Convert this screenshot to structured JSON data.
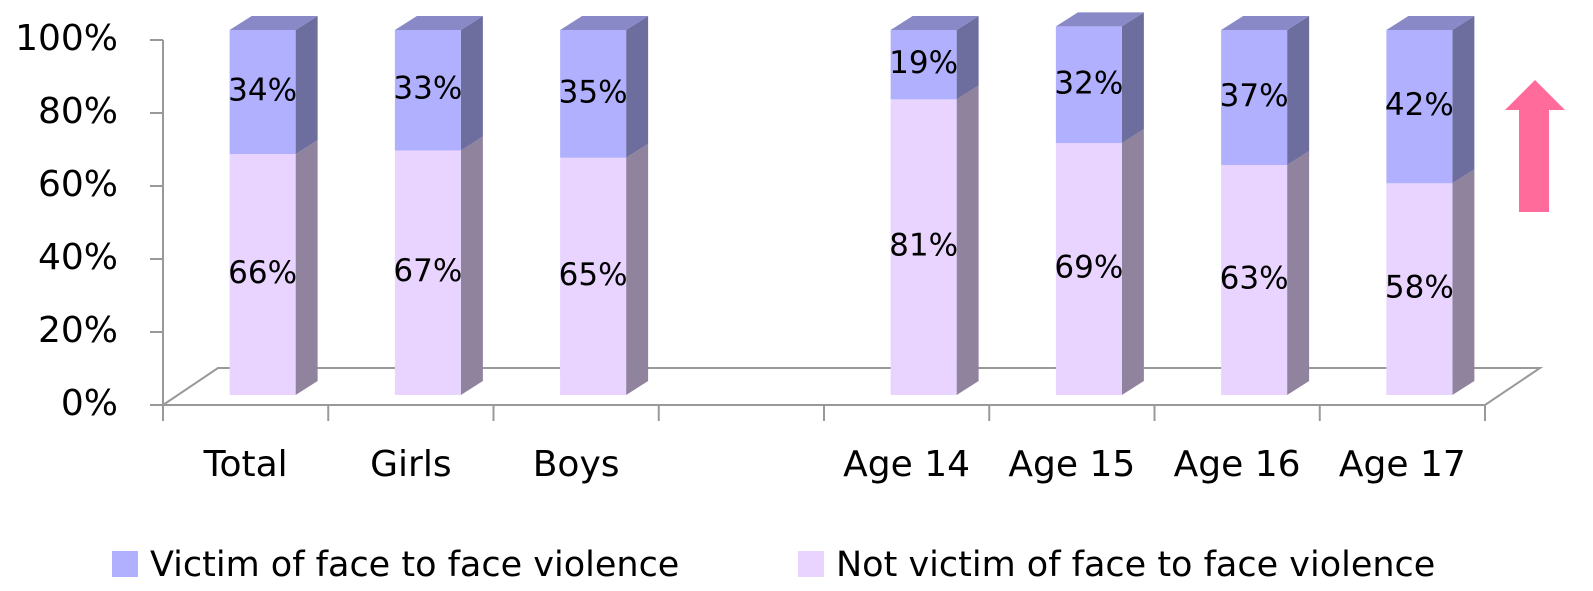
{
  "chart_data": {
    "type": "stacked_bar_3d",
    "categories": [
      "Total",
      "Girls",
      "Boys",
      null,
      "Age 14",
      "Age 15",
      "Age 16",
      "Age 17"
    ],
    "series": [
      {
        "name": "Victim of face to face violence",
        "color": "#b0b0ff",
        "values": [
          34,
          33,
          35,
          null,
          19,
          32,
          37,
          42
        ],
        "value_labels": [
          "34%",
          "33%",
          "35%",
          null,
          "19%",
          "32%",
          "37%",
          "42%"
        ]
      },
      {
        "name": "Not victim of face to face violence",
        "color": "#e8d4ff",
        "values": [
          66,
          67,
          65,
          null,
          81,
          69,
          63,
          58
        ],
        "value_labels": [
          "66%",
          "67%",
          "65%",
          null,
          "81%",
          "69%",
          "63%",
          "58%"
        ]
      }
    ],
    "ylim": [
      0,
      100
    ],
    "yticks": [
      {
        "value": 0,
        "label": "0%"
      },
      {
        "value": 20,
        "label": "20%"
      },
      {
        "value": 40,
        "label": "40%"
      },
      {
        "value": 60,
        "label": "60%"
      },
      {
        "value": 80,
        "label": "80%"
      },
      {
        "value": 100,
        "label": "100%"
      }
    ],
    "legend": "bottom"
  }
}
